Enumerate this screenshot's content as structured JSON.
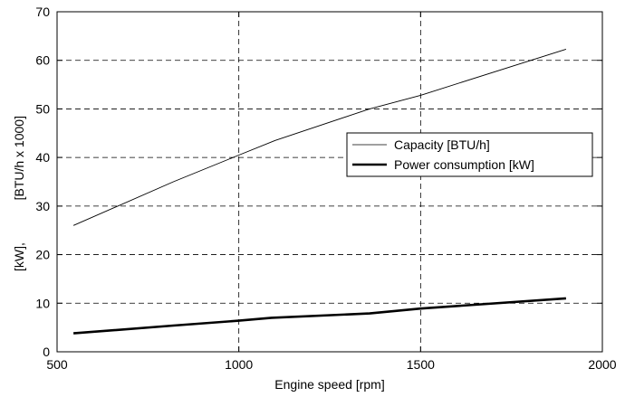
{
  "chart_data": {
    "type": "line",
    "title": "",
    "xlabel": "Engine speed [rpm]",
    "ylabel": "[kW],            [BTU/h x 1000]",
    "xlim": [
      500,
      2000
    ],
    "ylim": [
      0,
      70
    ],
    "xticks": [
      500,
      1000,
      1500,
      2000
    ],
    "yticks": [
      0,
      10,
      20,
      30,
      40,
      50,
      60,
      70
    ],
    "grid": true,
    "grid_style": "dashed",
    "legend_position": "center-right",
    "series": [
      {
        "name": "Capacity [BTU/h]",
        "color": "#000000",
        "line_weight": "thin",
        "x": [
          545,
          820,
          1000,
          1100,
          1360,
          1500,
          1900
        ],
        "y": [
          26,
          35,
          40.5,
          43.5,
          50,
          52.8,
          62.3
        ]
      },
      {
        "name": "Power consumption [kW]",
        "color": "#000000",
        "line_weight": "thick",
        "x": [
          545,
          820,
          1000,
          1090,
          1360,
          1500,
          1900
        ],
        "y": [
          3.8,
          5.4,
          6.4,
          7,
          7.9,
          8.9,
          11
        ]
      }
    ]
  }
}
